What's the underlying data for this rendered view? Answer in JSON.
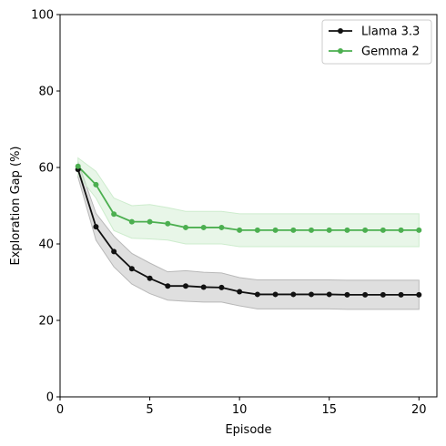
{
  "chart_data": {
    "type": "line",
    "xlabel": "Episode",
    "ylabel": "Exploration Gap (%)",
    "xlim": [
      0,
      21
    ],
    "ylim": [
      0,
      100
    ],
    "xticks": [
      0,
      5,
      10,
      15,
      20
    ],
    "yticks": [
      0,
      20,
      40,
      60,
      80,
      100
    ],
    "grid": false,
    "legend_position": "upper-right",
    "x": [
      1,
      2,
      3,
      4,
      5,
      6,
      7,
      8,
      9,
      10,
      11,
      12,
      13,
      14,
      15,
      16,
      17,
      18,
      19,
      20
    ],
    "series": [
      {
        "name": "Llama 3.3",
        "color": "#111111",
        "band_color": "#b8b8b8",
        "values": [
          59.5,
          44.5,
          38.0,
          33.5,
          31.0,
          29.0,
          29.0,
          28.7,
          28.6,
          27.5,
          26.8,
          26.8,
          26.8,
          26.8,
          26.8,
          26.7,
          26.7,
          26.7,
          26.7,
          26.7
        ],
        "lower": [
          57.5,
          41.0,
          34.0,
          29.5,
          27.0,
          25.3,
          25.0,
          24.8,
          24.8,
          23.8,
          23.0,
          23.0,
          23.0,
          23.0,
          23.0,
          22.9,
          22.9,
          22.9,
          22.9,
          22.9
        ],
        "upper": [
          61.5,
          48.0,
          42.0,
          37.5,
          35.0,
          32.7,
          33.0,
          32.6,
          32.4,
          31.2,
          30.6,
          30.6,
          30.6,
          30.6,
          30.6,
          30.5,
          30.5,
          30.5,
          30.5,
          30.5
        ]
      },
      {
        "name": "Gemma 2",
        "color": "#4caf50",
        "band_color": "#cdeccd",
        "values": [
          60.3,
          55.5,
          47.8,
          45.8,
          45.8,
          45.3,
          44.3,
          44.3,
          44.3,
          43.6,
          43.6,
          43.6,
          43.6,
          43.6,
          43.6,
          43.6,
          43.6,
          43.6,
          43.6,
          43.6
        ],
        "lower": [
          58.0,
          52.0,
          43.5,
          41.5,
          41.3,
          41.0,
          40.0,
          40.0,
          40.0,
          39.3,
          39.3,
          39.3,
          39.3,
          39.3,
          39.3,
          39.3,
          39.3,
          39.3,
          39.3,
          39.3
        ],
        "upper": [
          62.5,
          59.0,
          52.0,
          50.0,
          50.3,
          49.5,
          48.5,
          48.5,
          48.5,
          47.9,
          47.9,
          47.9,
          47.9,
          47.9,
          47.9,
          47.9,
          47.9,
          47.9,
          47.9,
          47.9
        ]
      }
    ]
  }
}
